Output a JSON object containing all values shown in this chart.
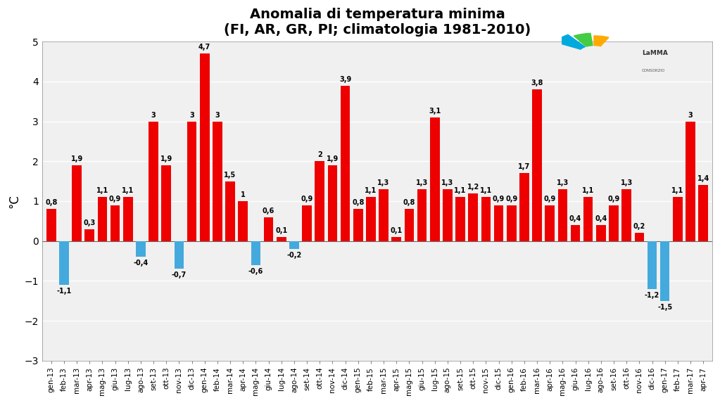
{
  "title_line1": "Anomalia di temperatura minima",
  "title_line2": "(FI, AR, GR, PI; climatologia 1981-2010)",
  "ylabel": "°C",
  "ylim": [
    -3,
    5
  ],
  "yticks": [
    -3,
    -2,
    -1,
    0,
    1,
    2,
    3,
    4,
    5
  ],
  "categories": [
    "gen-13",
    "feb-13",
    "mar-13",
    "apr-13",
    "mag-13",
    "giu-13",
    "lug-13",
    "ago-13",
    "set-13",
    "ott-13",
    "nov-13",
    "dic-13",
    "gen-14",
    "feb-14",
    "mar-14",
    "apr-14",
    "mag-14",
    "giu-14",
    "lug-14",
    "ago-14",
    "set-14",
    "ott-14",
    "nov-14",
    "dic-14",
    "gen-15",
    "feb-15",
    "mar-15",
    "apr-15",
    "mag-15",
    "giu-15",
    "lug-15",
    "ago-15",
    "set-15",
    "ott-15",
    "nov-15",
    "dic-15",
    "gen-16",
    "feb-16",
    "mar-16",
    "apr-16",
    "mag-16",
    "giu-16",
    "lug-16",
    "ago-16",
    "set-16",
    "ott-16",
    "nov-16",
    "dic-16",
    "gen-17",
    "feb-17",
    "mar-17",
    "apr-17"
  ],
  "values": [
    0.8,
    -1.1,
    1.9,
    0.3,
    1.1,
    0.9,
    1.1,
    -0.4,
    3.0,
    1.9,
    -0.7,
    3.0,
    4.7,
    3.0,
    1.5,
    1.0,
    -0.6,
    0.6,
    0.1,
    -0.2,
    0.9,
    2.0,
    1.9,
    3.9,
    0.8,
    1.1,
    1.3,
    0.1,
    0.8,
    1.3,
    3.1,
    1.3,
    1.1,
    1.2,
    1.1,
    0.9,
    0.9,
    1.7,
    3.8,
    0.9,
    1.3,
    0.4,
    1.1,
    0.4,
    0.9,
    1.3,
    0.2,
    -1.2,
    -1.5,
    1.1,
    3.0,
    1.4
  ],
  "bar_color_positive": "#EE0000",
  "bar_color_negative": "#44AADD",
  "background_color": "#FFFFFF",
  "plot_bg_color": "#F0F0F0",
  "grid_color": "#FFFFFF",
  "title_fontsize": 14,
  "label_fontsize": 7.5,
  "value_fontsize": 7,
  "ylabel_fontsize": 12
}
